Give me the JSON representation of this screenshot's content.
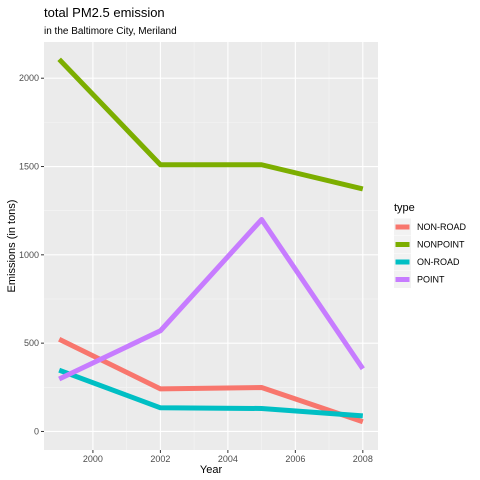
{
  "chart_data": {
    "type": "line",
    "title": "total PM2.5 emission",
    "subtitle": "in the Baltimore City, Meriland",
    "xlabel": "Year",
    "ylabel": "Emissions (in tons)",
    "x": [
      1999,
      2002,
      2005,
      2008
    ],
    "xlim": [
      1998.55,
      2008.45
    ],
    "ylim": [
      -105,
      2205
    ],
    "x_ticks": [
      2000,
      2002,
      2004,
      2006,
      2008
    ],
    "y_ticks": [
      0,
      500,
      1000,
      1500,
      2000
    ],
    "grid": true,
    "legend_title": "type",
    "legend_position": "right",
    "series": [
      {
        "name": "NON-ROAD",
        "color": "#F8766D",
        "values": [
          522,
          241,
          249,
          55
        ]
      },
      {
        "name": "NONPOINT",
        "color": "#7CAE00",
        "values": [
          2107,
          1510,
          1510,
          1373
        ]
      },
      {
        "name": "ON-ROAD",
        "color": "#00BFC4",
        "values": [
          347,
          134,
          130,
          88
        ]
      },
      {
        "name": "POINT",
        "color": "#C77CFF",
        "values": [
          297,
          570,
          1200,
          355
        ]
      }
    ]
  },
  "colors": {
    "panel_background": "#EBEBEB",
    "grid_major": "#FFFFFF",
    "grid_minor": "#F5F5F5",
    "tick_text": "#4D4D4D"
  }
}
